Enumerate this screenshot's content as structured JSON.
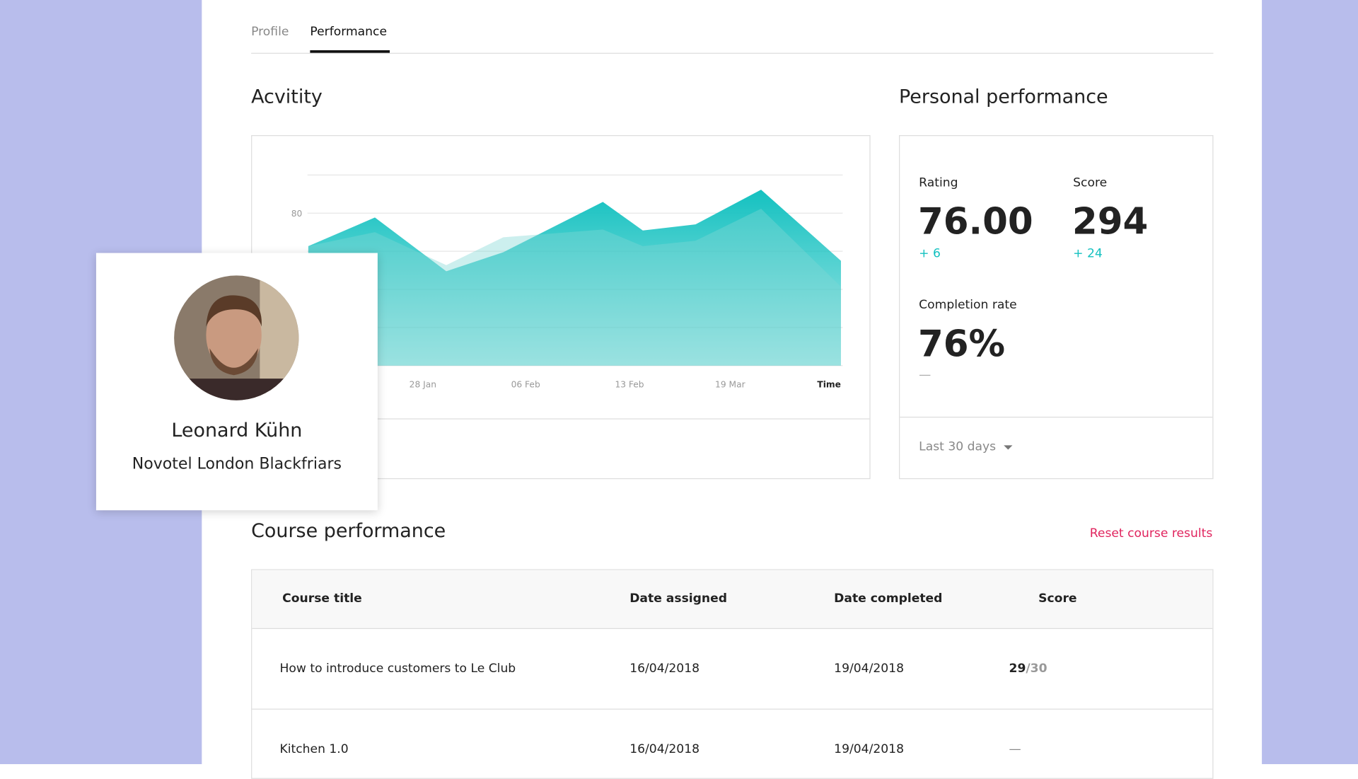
{
  "tabs": [
    "Profile",
    "Performance"
  ],
  "chart_data": {
    "type": "area",
    "title": "Acvitity",
    "x_label": "Time",
    "x": [
      0,
      12.5,
      25.9,
      36.6,
      55.3,
      62.8,
      72.7,
      85,
      100
    ],
    "xlim": [
      0,
      100
    ],
    "xticks": [
      {
        "value": 21.5,
        "label": "28 Jan"
      },
      {
        "value": 40.8,
        "label": "06 Feb"
      },
      {
        "value": 60.3,
        "label": "13 Feb"
      },
      {
        "value": 79.2,
        "label": "19 Mar"
      }
    ],
    "ylim": [
      0,
      100
    ],
    "yticks": [
      80
    ],
    "gridlines": [
      0,
      20,
      40,
      60,
      80,
      100
    ],
    "series": [
      {
        "color": "#14c1c0",
        "values": [
          62.7,
          77.7,
          49.5,
          59.5,
          85.9,
          70.9,
          74.1,
          92.3,
          55
        ]
      },
      {
        "color": "#7fd8d5",
        "values": [
          62.7,
          70,
          52.7,
          67.3,
          71.4,
          62.7,
          65.5,
          82.3,
          41.4
        ]
      }
    ]
  },
  "personal": {
    "title": "Personal performance",
    "rating": {
      "label": "Rating",
      "value": "76.00",
      "delta": "+ 6"
    },
    "score": {
      "label": "Score",
      "value": "294",
      "delta": "+ 24"
    },
    "completion": {
      "label": "Completion rate",
      "value": "76%",
      "delta": "—"
    },
    "period": "Last 30 days"
  },
  "profile": {
    "name": "Leonard Kühn",
    "hotel": "Novotel London Blackfriars"
  },
  "course": {
    "title": "Course performance",
    "reset": "Reset course results",
    "header": [
      "Course title",
      "Date assigned",
      "Date completed",
      "Score"
    ],
    "rows": [
      {
        "title": "How to introduce customers to Le Club",
        "assigned": "16/04/2018",
        "completed": "19/04/2018",
        "score": "29",
        "total": "/30"
      },
      {
        "title": "Kitchen 1.0",
        "assigned": "16/04/2018",
        "completed": "19/04/2018",
        "score": "—"
      }
    ]
  }
}
